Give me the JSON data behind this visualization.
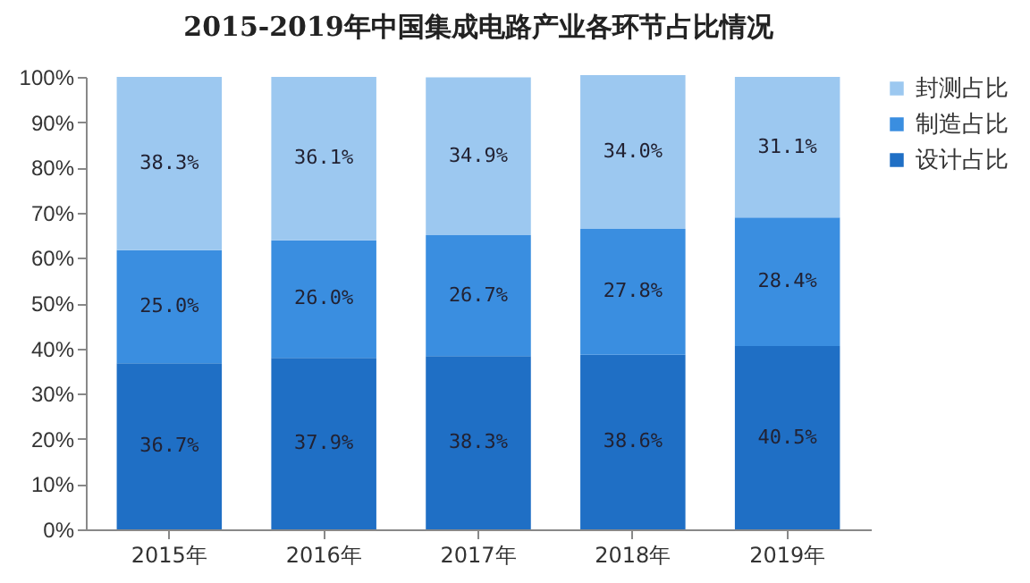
{
  "chart_data": {
    "type": "bar",
    "title": "2015-2019年中国集成电路产业各环节占比情况",
    "categories": [
      "2015年",
      "2016年",
      "2017年",
      "2018年",
      "2019年"
    ],
    "stacked": true,
    "series": [
      {
        "name": "设计占比",
        "color": "#1f6fc5",
        "values": [
          36.7,
          37.9,
          38.3,
          38.6,
          40.5
        ],
        "value_labels": [
          "36.7%",
          "37.9%",
          "38.3%",
          "38.6%",
          "40.5%"
        ]
      },
      {
        "name": "制造占比",
        "color": "#3a8ee0",
        "values": [
          25.0,
          26.0,
          26.7,
          27.8,
          28.4
        ],
        "value_labels": [
          "25.0%",
          "26.0%",
          "26.7%",
          "27.8%",
          "28.4%"
        ]
      },
      {
        "name": "封测占比",
        "color": "#9cc8f0",
        "values": [
          38.3,
          36.1,
          34.9,
          34.0,
          31.1
        ],
        "value_labels": [
          "38.3%",
          "36.1%",
          "34.9%",
          "34.0%",
          "31.1%"
        ]
      }
    ],
    "ylim": [
      0,
      100
    ],
    "yticks": [
      {
        "value": 0,
        "label": "0%"
      },
      {
        "value": 10,
        "label": "10%"
      },
      {
        "value": 20,
        "label": "20%"
      },
      {
        "value": 30,
        "label": "30%"
      },
      {
        "value": 40,
        "label": "40%"
      },
      {
        "value": 50,
        "label": "50%"
      },
      {
        "value": 60,
        "label": "60%"
      },
      {
        "value": 70,
        "label": "70%"
      },
      {
        "value": 80,
        "label": "80%"
      },
      {
        "value": 90,
        "label": "90%"
      },
      {
        "value": 100,
        "label": "100%"
      }
    ],
    "grid": false,
    "legend": "right"
  }
}
